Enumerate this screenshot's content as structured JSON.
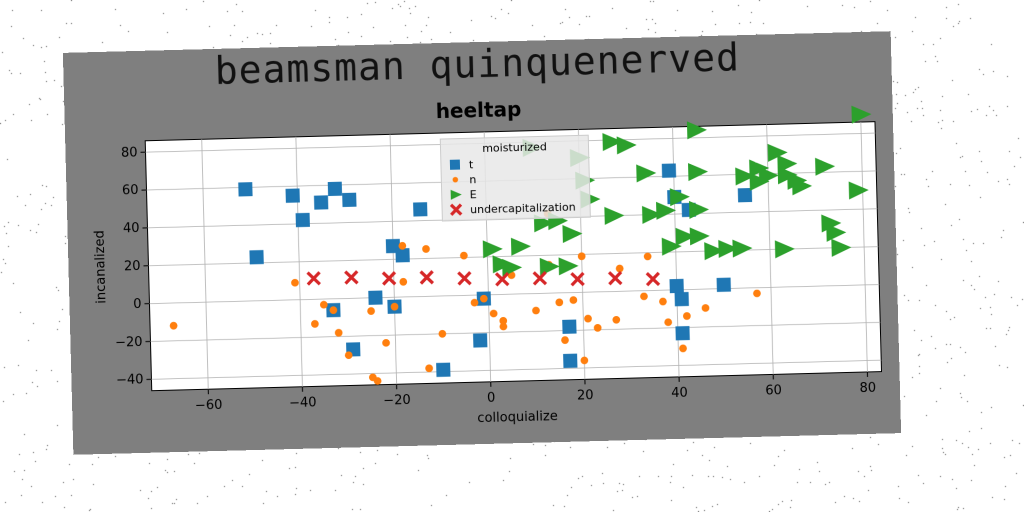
{
  "page_title": "beamsman quinquenerved",
  "chart_data": {
    "type": "scatter",
    "title": "heeltap",
    "xlabel": "colloquialize",
    "ylabel": "incanalized",
    "xlim": [
      -72,
      83
    ],
    "ylim": [
      -46,
      86
    ],
    "xticks": [
      -60,
      -40,
      -20,
      0,
      20,
      40,
      60,
      80
    ],
    "yticks": [
      -40,
      -20,
      0,
      20,
      40,
      60,
      80
    ],
    "grid": true,
    "legend": {
      "title": "moisturized",
      "placement": "upper-center"
    },
    "series": [
      {
        "name": "t",
        "marker": "square",
        "color": "#1f77b4",
        "points": [
          [
            -51,
            59
          ],
          [
            -49,
            23
          ],
          [
            -41,
            55
          ],
          [
            -39,
            42
          ],
          [
            -35,
            51
          ],
          [
            -33,
            -6
          ],
          [
            -32,
            58
          ],
          [
            -29,
            52
          ],
          [
            -29,
            -27
          ],
          [
            -24,
            0
          ],
          [
            -20,
            -5
          ],
          [
            -20,
            27
          ],
          [
            -18,
            22
          ],
          [
            -14,
            46
          ],
          [
            -10,
            -39
          ],
          [
            -2,
            -24
          ],
          [
            -1,
            -2
          ],
          [
            17,
            -36
          ],
          [
            17,
            -18
          ],
          [
            39,
            63
          ],
          [
            40,
            2
          ],
          [
            40,
            49
          ],
          [
            41,
            -5
          ],
          [
            41,
            -23
          ],
          [
            43,
            42
          ],
          [
            50,
            2
          ],
          [
            55,
            49
          ]
        ]
      },
      {
        "name": "n",
        "marker": "circle",
        "color": "#ff7f0e",
        "points": [
          [
            -67,
            -12
          ],
          [
            -41,
            9
          ],
          [
            -37,
            -13
          ],
          [
            -35,
            -3
          ],
          [
            -33,
            -6
          ],
          [
            -32,
            -18
          ],
          [
            -30,
            -30
          ],
          [
            -25,
            -7
          ],
          [
            -25,
            -42
          ],
          [
            -24,
            -44
          ],
          [
            -22,
            -24
          ],
          [
            -20,
            -5
          ],
          [
            -18,
            27
          ],
          [
            -18,
            8
          ],
          [
            -13,
            25
          ],
          [
            -13,
            -38
          ],
          [
            -10,
            -20
          ],
          [
            -5,
            21
          ],
          [
            -3,
            -4
          ],
          [
            -1,
            -2
          ],
          [
            1,
            -10
          ],
          [
            3,
            -17
          ],
          [
            3,
            -14
          ],
          [
            5,
            10
          ],
          [
            10,
            -9
          ],
          [
            13,
            15
          ],
          [
            13,
            42
          ],
          [
            15,
            -5
          ],
          [
            15,
            38
          ],
          [
            16,
            -25
          ],
          [
            18,
            -4
          ],
          [
            20,
            19
          ],
          [
            20,
            -36
          ],
          [
            21,
            -14
          ],
          [
            23,
            -19
          ],
          [
            27,
            -15
          ],
          [
            28,
            12
          ],
          [
            33,
            -3
          ],
          [
            34,
            18
          ],
          [
            37,
            -6
          ],
          [
            38,
            -17
          ],
          [
            41,
            -31
          ],
          [
            42,
            -14
          ],
          [
            46,
            -10
          ],
          [
            57,
            -3
          ]
        ]
      },
      {
        "name": "E",
        "marker": "triangle-right",
        "color": "#2ca02c",
        "points": [
          [
            1,
            24
          ],
          [
            3,
            16
          ],
          [
            5,
            14
          ],
          [
            7,
            25
          ],
          [
            10,
            77
          ],
          [
            12,
            37
          ],
          [
            13,
            14
          ],
          [
            15,
            38
          ],
          [
            17,
            14
          ],
          [
            18,
            31
          ],
          [
            20,
            71
          ],
          [
            21,
            59
          ],
          [
            22,
            49
          ],
          [
            27,
            79
          ],
          [
            27,
            40
          ],
          [
            30,
            77
          ],
          [
            34,
            62
          ],
          [
            35,
            40
          ],
          [
            38,
            42
          ],
          [
            39,
            23
          ],
          [
            41,
            49
          ],
          [
            42,
            28
          ],
          [
            45,
            28
          ],
          [
            45,
            84
          ],
          [
            45,
            42
          ],
          [
            45,
            62
          ],
          [
            48,
            20
          ],
          [
            51,
            21
          ],
          [
            54,
            21
          ],
          [
            55,
            59
          ],
          [
            58,
            56
          ],
          [
            58,
            63
          ],
          [
            60,
            59
          ],
          [
            62,
            71
          ],
          [
            63,
            20
          ],
          [
            64,
            59
          ],
          [
            64,
            65
          ],
          [
            66,
            56
          ],
          [
            67,
            53
          ],
          [
            72,
            63
          ],
          [
            73,
            33
          ],
          [
            74,
            28
          ],
          [
            75,
            20
          ],
          [
            79,
            50
          ],
          [
            80,
            90
          ]
        ]
      },
      {
        "name": "undercapitalization",
        "marker": "x",
        "color": "#d62728",
        "points": [
          [
            -37,
            11
          ],
          [
            -29,
            11
          ],
          [
            -21,
            10
          ],
          [
            -13,
            10
          ],
          [
            -5,
            9
          ],
          [
            3,
            8
          ],
          [
            11,
            8
          ],
          [
            19,
            7
          ],
          [
            27,
            7
          ],
          [
            35,
            6
          ]
        ]
      }
    ]
  }
}
